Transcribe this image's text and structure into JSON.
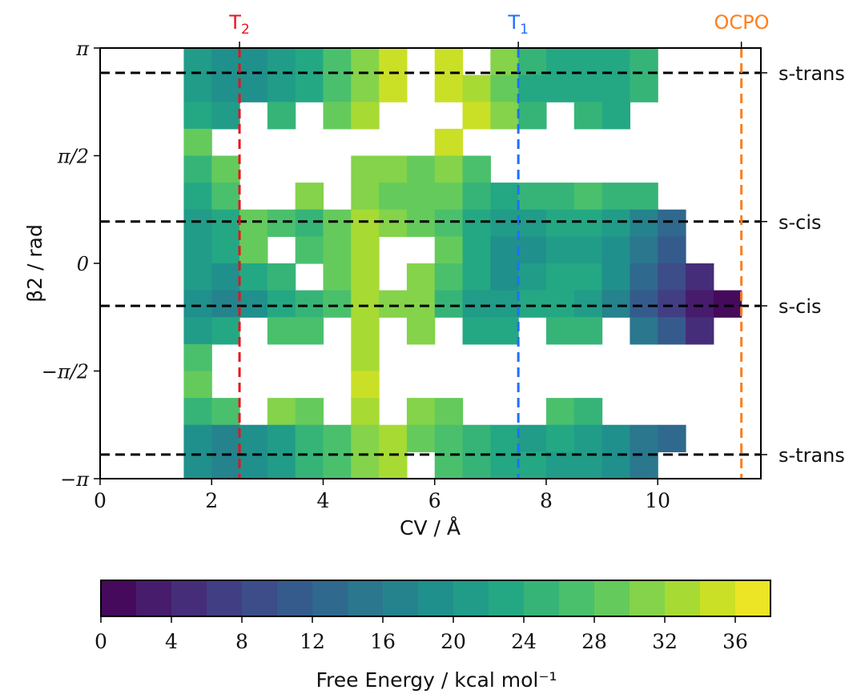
{
  "chart_data": {
    "type": "heatmap",
    "xlabel": "CV / Å",
    "ylabel": "β2 / rad",
    "xlim": [
      0,
      11.85
    ],
    "ylim": [
      -3.14159,
      3.14159
    ],
    "x_ticks": [
      0,
      2,
      4,
      6,
      8,
      10
    ],
    "y_ticks": [
      {
        "value": 3.14159,
        "label": "π"
      },
      {
        "value": 1.5708,
        "label": "π/2"
      },
      {
        "value": 0,
        "label": "0"
      },
      {
        "value": -1.5708,
        "label": "−π/2"
      },
      {
        "value": -3.14159,
        "label": "−π"
      }
    ],
    "grid": false,
    "colormap": "viridis",
    "colorbar": {
      "label": "Free Energy / kcal mol⁻¹",
      "range": [
        0,
        38
      ],
      "levels_step": 2,
      "ticks": [
        0,
        4,
        8,
        12,
        16,
        20,
        24,
        28,
        32,
        36
      ],
      "placement": "bottom"
    },
    "grid_x_centers_step": 0.5,
    "grid_x_start": 0.25,
    "grid_y_rows_from": "top",
    "z": [
      [
        null,
        null,
        null,
        20,
        18,
        18,
        20,
        22,
        26,
        30,
        34,
        null,
        34,
        null,
        30,
        24,
        22,
        22,
        22,
        24,
        null,
        null,
        null,
        null
      ],
      [
        null,
        null,
        null,
        20,
        18,
        18,
        20,
        22,
        26,
        30,
        34,
        null,
        34,
        32,
        28,
        22,
        22,
        22,
        22,
        24,
        null,
        null,
        null,
        null
      ],
      [
        null,
        null,
        null,
        22,
        20,
        null,
        24,
        null,
        28,
        32,
        null,
        null,
        null,
        34,
        30,
        24,
        null,
        24,
        22,
        null,
        null,
        null,
        null,
        null
      ],
      [
        null,
        null,
        null,
        28,
        null,
        null,
        null,
        null,
        null,
        null,
        null,
        null,
        34,
        null,
        null,
        null,
        null,
        null,
        null,
        null,
        null,
        null,
        null,
        null
      ],
      [
        null,
        null,
        null,
        24,
        28,
        null,
        null,
        null,
        null,
        30,
        30,
        28,
        30,
        26,
        null,
        null,
        null,
        null,
        null,
        null,
        null,
        null,
        null,
        null
      ],
      [
        null,
        null,
        null,
        22,
        26,
        null,
        null,
        30,
        null,
        30,
        28,
        28,
        28,
        24,
        22,
        24,
        24,
        26,
        24,
        24,
        null,
        null,
        null,
        null
      ],
      [
        null,
        null,
        null,
        20,
        22,
        28,
        26,
        24,
        28,
        32,
        30,
        28,
        26,
        22,
        20,
        20,
        22,
        22,
        20,
        16,
        12,
        null,
        null,
        null
      ],
      [
        null,
        null,
        null,
        20,
        22,
        28,
        null,
        26,
        28,
        32,
        null,
        null,
        28,
        22,
        18,
        18,
        20,
        20,
        18,
        14,
        10,
        null,
        null,
        null
      ],
      [
        null,
        null,
        null,
        20,
        18,
        22,
        24,
        null,
        28,
        32,
        null,
        30,
        26,
        22,
        18,
        20,
        22,
        22,
        18,
        12,
        8,
        4,
        null,
        null
      ],
      [
        null,
        null,
        null,
        18,
        16,
        18,
        22,
        24,
        26,
        32,
        30,
        30,
        24,
        20,
        20,
        22,
        22,
        20,
        16,
        10,
        6,
        2,
        0,
        null
      ],
      [
        null,
        null,
        null,
        20,
        22,
        null,
        26,
        26,
        null,
        32,
        null,
        30,
        null,
        22,
        22,
        null,
        24,
        24,
        null,
        14,
        10,
        4,
        null,
        null
      ],
      [
        null,
        null,
        null,
        26,
        null,
        null,
        null,
        null,
        null,
        32,
        null,
        null,
        null,
        null,
        null,
        null,
        null,
        null,
        null,
        null,
        null,
        null,
        null,
        null
      ],
      [
        null,
        null,
        null,
        28,
        null,
        null,
        null,
        null,
        null,
        34,
        null,
        null,
        null,
        null,
        null,
        null,
        null,
        null,
        null,
        null,
        null,
        null,
        null,
        null
      ],
      [
        null,
        null,
        null,
        24,
        26,
        null,
        30,
        28,
        null,
        32,
        null,
        30,
        28,
        null,
        null,
        null,
        26,
        24,
        null,
        null,
        null,
        null,
        null,
        null
      ],
      [
        null,
        null,
        null,
        18,
        16,
        18,
        20,
        24,
        26,
        30,
        32,
        28,
        26,
        24,
        22,
        20,
        22,
        20,
        18,
        14,
        12,
        null,
        null,
        null
      ],
      [
        null,
        null,
        null,
        18,
        16,
        18,
        20,
        24,
        26,
        30,
        32,
        null,
        26,
        24,
        22,
        22,
        20,
        20,
        18,
        14,
        null,
        null,
        null,
        null
      ]
    ],
    "vertical_lines": [
      {
        "x": 2.5,
        "label": "T2",
        "label_main": "T",
        "label_sub": "2",
        "color": "#e8141c"
      },
      {
        "x": 7.5,
        "label": "T1",
        "label_main": "T",
        "label_sub": "1",
        "color": "#1f6fff"
      },
      {
        "x": 11.5,
        "label": "OCPO",
        "label_main": "OCP",
        "label_sup": "O",
        "color": "#ff7f1e"
      }
    ],
    "horizontal_lines": [
      {
        "y": 2.78,
        "label": "s-trans"
      },
      {
        "y": 0.61,
        "label": "s-cis"
      },
      {
        "y": -0.62,
        "label": "s-cis"
      },
      {
        "y": -2.79,
        "label": "s-trans"
      }
    ],
    "line_color": "#000000"
  }
}
